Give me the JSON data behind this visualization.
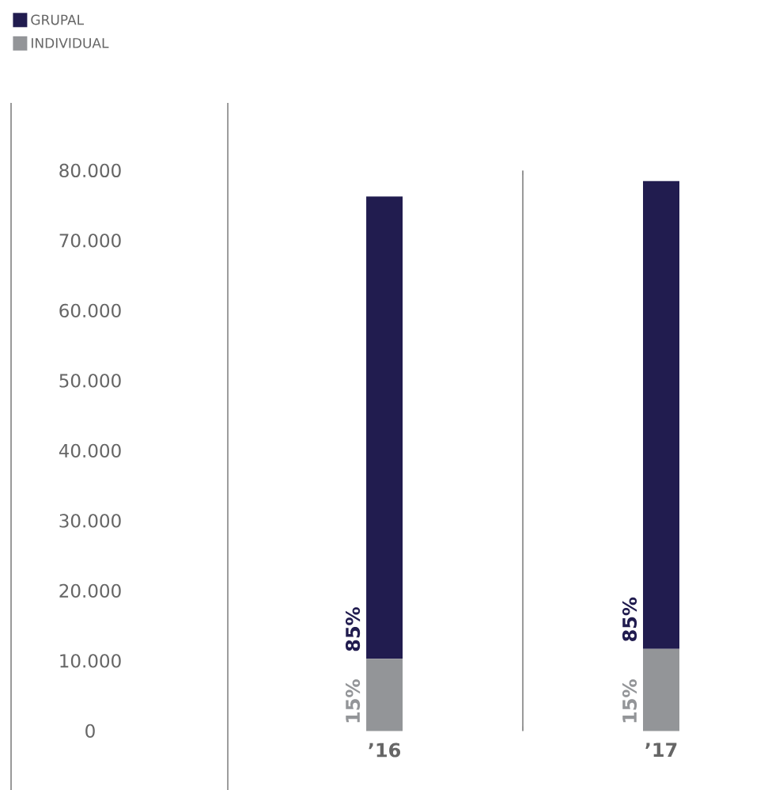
{
  "chart_data": {
    "type": "bar",
    "stacked": true,
    "categories": [
      "’16",
      "’17"
    ],
    "series": [
      {
        "name": "INDIVIDUAL",
        "color": "#939598",
        "values": [
          10300,
          11700
        ]
      },
      {
        "name": "GRUPAL",
        "color": "#211c4f",
        "values": [
          66000,
          66800
        ]
      }
    ],
    "annotations": [
      {
        "text": "15%",
        "x": "’16",
        "y": 0
      },
      {
        "text": "85%",
        "x": "’16",
        "y": 10300
      },
      {
        "text": "15%",
        "x": "’17",
        "y": 0
      },
      {
        "text": "85%",
        "x": "’17",
        "y": 11700
      }
    ],
    "ylim": [
      0,
      80000
    ],
    "yticks": [
      0,
      {
        "value": 10000,
        "label": "10.000"
      },
      {
        "value": 20000,
        "label": "20.000"
      },
      {
        "value": 30000,
        "label": "30.000"
      },
      {
        "value": 40000,
        "label": "40.000"
      },
      {
        "value": 50000,
        "label": "50.000"
      },
      {
        "value": 60000,
        "label": "60.000"
      },
      {
        "value": 70000,
        "label": "70.000"
      },
      {
        "value": 80000,
        "label": "80.000"
      }
    ],
    "legend": "top left",
    "grid": "x"
  }
}
